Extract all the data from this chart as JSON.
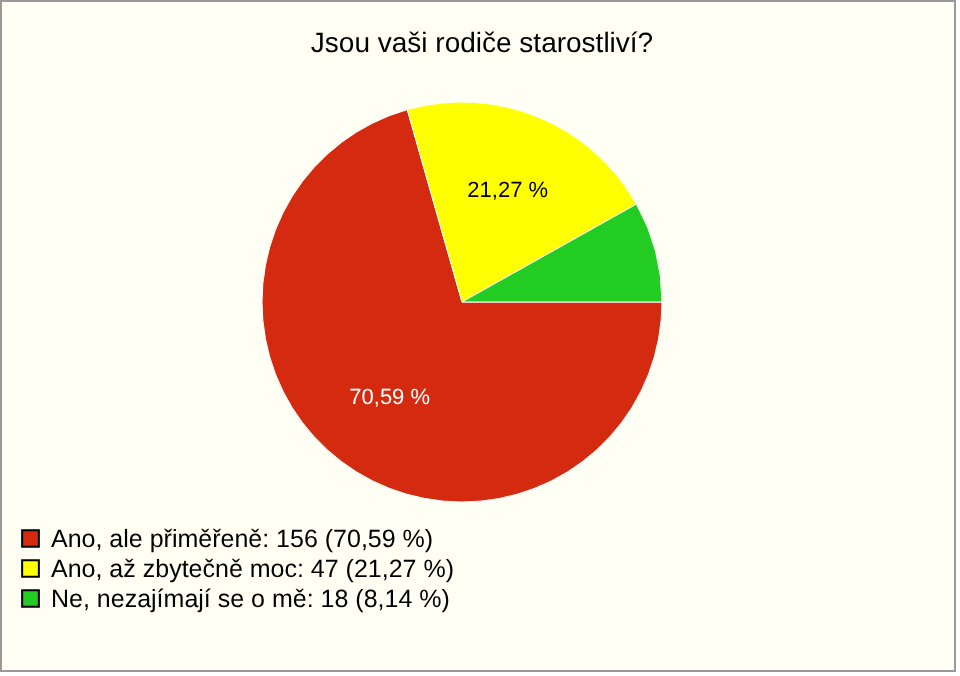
{
  "chart_data": {
    "type": "pie",
    "title": "Jsou vaši rodiče starostliví?",
    "categories": [
      "Ano, ale přiměřeně: 156 (70,59 %)",
      "Ano, až zbytečně moc: 47 (21,27 %)",
      "Ne, nezajímají se o mě: 18 (8,14 %)"
    ],
    "values": [
      70.59,
      21.27,
      8.14
    ],
    "colors": [
      "#d42a10",
      "#ffff00",
      "#22cc22"
    ],
    "value_labels": [
      "70,59 %",
      "21,27 %",
      null
    ],
    "legend": "bottom left"
  }
}
